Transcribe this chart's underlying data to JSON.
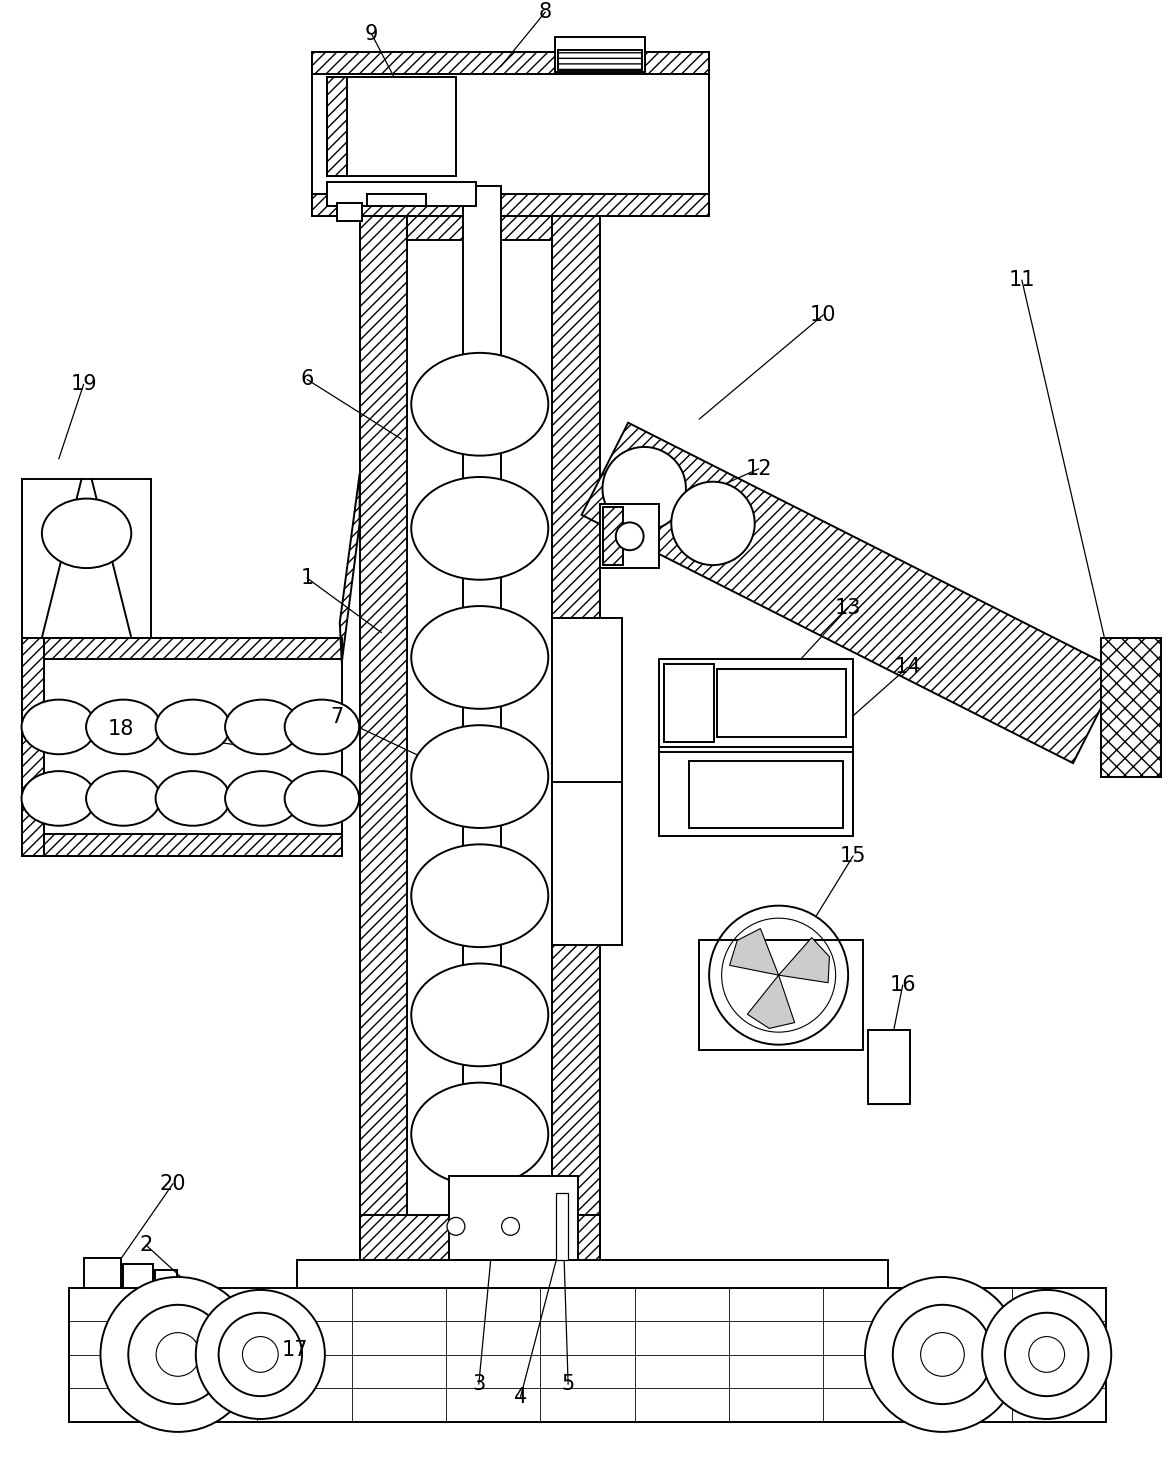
{
  "fig_width": 11.74,
  "fig_height": 14.73,
  "dpi": 100,
  "bg_color": "#ffffff",
  "lc": "#000000",
  "lw": 1.4
}
